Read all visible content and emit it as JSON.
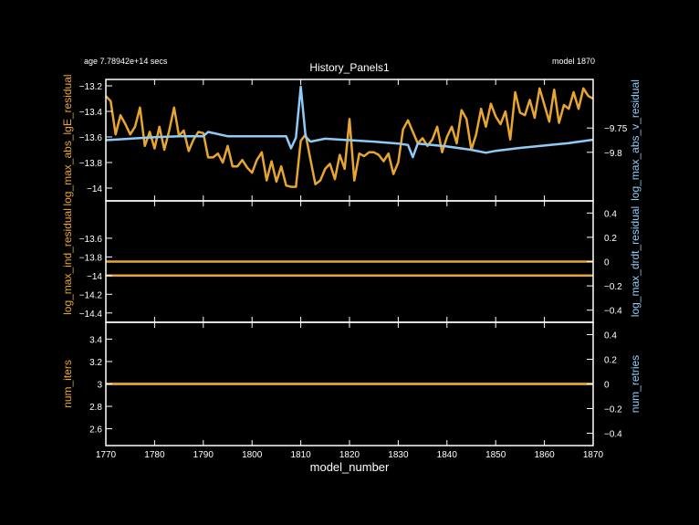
{
  "header": {
    "title": "History_Panels1",
    "age": "age 7.78942e+14 secs",
    "model": "model 1870"
  },
  "colors": {
    "left": "#e8a530",
    "right": "#8ecbf6",
    "frame": "#ffffff",
    "background": "#000000"
  },
  "chart_data": [
    {
      "type": "line",
      "xlabel": "model_number",
      "ylabel": "log_max_abs_lgE_residual",
      "y2label": "log_max_abs_v_residual",
      "xlim": [
        1770,
        1870
      ],
      "ylim": [
        -14.1,
        -13.15
      ],
      "y2lim": [
        -9.9,
        -9.65
      ],
      "xticks": [
        "1770",
        "1780",
        "1790",
        "1800",
        "1810",
        "1820",
        "1830",
        "1840",
        "1850",
        "1860",
        "1870"
      ],
      "yticks": [
        -14,
        -13.8,
        -13.6,
        -13.4,
        -13.2
      ],
      "yticklabels": [
        "−14",
        "−13.8",
        "−13.6",
        "−13.4",
        "−13.2"
      ],
      "y2ticks": [
        -9.8,
        -9.75
      ],
      "y2ticklabels": [
        "−9.8",
        "−9.75"
      ],
      "series": [
        {
          "axis": "left",
          "x": [
            1770,
            1771,
            1772,
            1773,
            1774,
            1775,
            1776,
            1777,
            1778,
            1779,
            1780,
            1781,
            1782,
            1783,
            1784,
            1785,
            1786,
            1787,
            1788,
            1789,
            1790,
            1791,
            1792,
            1793,
            1794,
            1795,
            1796,
            1797,
            1798,
            1799,
            1800,
            1801,
            1802,
            1803,
            1804,
            1805,
            1806,
            1807,
            1808,
            1809,
            1810,
            1811,
            1812,
            1813,
            1814,
            1815,
            1816,
            1817,
            1818,
            1819,
            1820,
            1821,
            1822,
            1823,
            1824,
            1825,
            1826,
            1827,
            1828,
            1829,
            1830,
            1831,
            1832,
            1833,
            1834,
            1835,
            1836,
            1837,
            1838,
            1839,
            1840,
            1841,
            1842,
            1843,
            1844,
            1845,
            1846,
            1847,
            1848,
            1849,
            1850,
            1851,
            1852,
            1853,
            1854,
            1855,
            1856,
            1857,
            1858,
            1859,
            1860,
            1861,
            1862,
            1863,
            1864,
            1865,
            1866,
            1867,
            1868,
            1869,
            1870
          ],
          "y": [
            -13.28,
            -13.32,
            -13.58,
            -13.43,
            -13.5,
            -13.58,
            -13.52,
            -13.37,
            -13.67,
            -13.56,
            -13.69,
            -13.52,
            -13.7,
            -13.55,
            -13.37,
            -13.59,
            -13.55,
            -13.71,
            -13.62,
            -13.56,
            -13.57,
            -13.76,
            -13.76,
            -13.73,
            -13.8,
            -13.67,
            -13.83,
            -13.83,
            -13.78,
            -13.84,
            -13.88,
            -13.78,
            -13.72,
            -13.94,
            -13.79,
            -13.95,
            -13.83,
            -13.98,
            -13.99,
            -13.99,
            -13.63,
            -13.58,
            -13.78,
            -13.97,
            -13.94,
            -13.85,
            -13.81,
            -13.93,
            -13.74,
            -13.85,
            -13.46,
            -13.94,
            -13.73,
            -13.75,
            -13.72,
            -13.72,
            -13.74,
            -13.79,
            -13.73,
            -13.89,
            -13.8,
            -13.54,
            -13.47,
            -13.56,
            -13.65,
            -13.61,
            -13.67,
            -13.62,
            -13.52,
            -13.72,
            -13.6,
            -13.52,
            -13.65,
            -13.39,
            -13.46,
            -13.7,
            -13.58,
            -13.38,
            -13.52,
            -13.34,
            -13.44,
            -13.5,
            -13.4,
            -13.62,
            -13.25,
            -13.41,
            -13.43,
            -13.31,
            -13.45,
            -13.22,
            -13.35,
            -13.48,
            -13.23,
            -13.49,
            -13.35,
            -13.38,
            -13.25,
            -13.38,
            -13.22,
            -13.28,
            -13.3
          ],
          "stroke": "#e8a530"
        },
        {
          "axis": "right",
          "x": [
            1770,
            1775,
            1780,
            1785,
            1788,
            1790,
            1791,
            1795,
            1800,
            1805,
            1807,
            1808,
            1809,
            1810,
            1811,
            1812,
            1815,
            1820,
            1825,
            1830,
            1832,
            1833,
            1834,
            1840,
            1845,
            1848,
            1850,
            1855,
            1860,
            1865,
            1870
          ],
          "y": [
            -9.775,
            -9.772,
            -9.769,
            -9.767,
            -9.767,
            -9.767,
            -9.758,
            -9.767,
            -9.767,
            -9.767,
            -9.767,
            -9.792,
            -9.77,
            -9.665,
            -9.768,
            -9.778,
            -9.772,
            -9.775,
            -9.778,
            -9.782,
            -9.785,
            -9.81,
            -9.782,
            -9.788,
            -9.795,
            -9.801,
            -9.797,
            -9.791,
            -9.786,
            -9.781,
            -9.774
          ],
          "stroke": "#8ecbf6"
        }
      ]
    },
    {
      "type": "line",
      "ylabel": "log_max_ind_residual",
      "y2label": "log_max_drdt_residual",
      "xlim": [
        1770,
        1870
      ],
      "ylim": [
        -14.5,
        -13.2
      ],
      "y2lim": [
        -0.5,
        0.5
      ],
      "yticks": [
        -14.4,
        -14.2,
        -14,
        -13.8,
        -13.6
      ],
      "yticklabels": [
        "−14.4",
        "−14.2",
        "−14",
        "−13.8",
        "−13.6"
      ],
      "y2ticks": [
        -0.4,
        -0.2,
        0,
        0.2,
        0.4
      ],
      "y2ticklabels": [
        "−0.4",
        "−0.2",
        "0",
        "0.2",
        "0.4"
      ],
      "series": [
        {
          "axis": "left",
          "x": [
            1770,
            1870
          ],
          "y": [
            -14,
            -14
          ],
          "stroke": "#e8a530"
        },
        {
          "axis": "right",
          "x": [
            1770,
            1870
          ],
          "y": [
            0,
            0
          ],
          "stroke": "#e8a530"
        }
      ]
    },
    {
      "type": "line",
      "ylabel": "num_iters",
      "y2label": "num_retries",
      "xlim": [
        1770,
        1870
      ],
      "ylim": [
        2.45,
        3.55
      ],
      "y2lim": [
        -0.5,
        0.5
      ],
      "yticks": [
        2.6,
        2.8,
        3,
        3.2,
        3.4
      ],
      "yticklabels": [
        "2.6",
        "2.8",
        "3",
        "3.2",
        "3.4"
      ],
      "y2ticks": [
        -0.4,
        -0.2,
        0,
        0.2,
        0.4
      ],
      "y2ticklabels": [
        "−0.4",
        "−0.2",
        "0",
        "0.2",
        "0.4"
      ],
      "series": [
        {
          "axis": "left",
          "x": [
            1770,
            1870
          ],
          "y": [
            3,
            3
          ],
          "stroke": "#e8a530"
        },
        {
          "axis": "right",
          "x": [
            1770,
            1870
          ],
          "y": [
            0,
            0
          ],
          "stroke": "#e8a530"
        }
      ]
    }
  ]
}
